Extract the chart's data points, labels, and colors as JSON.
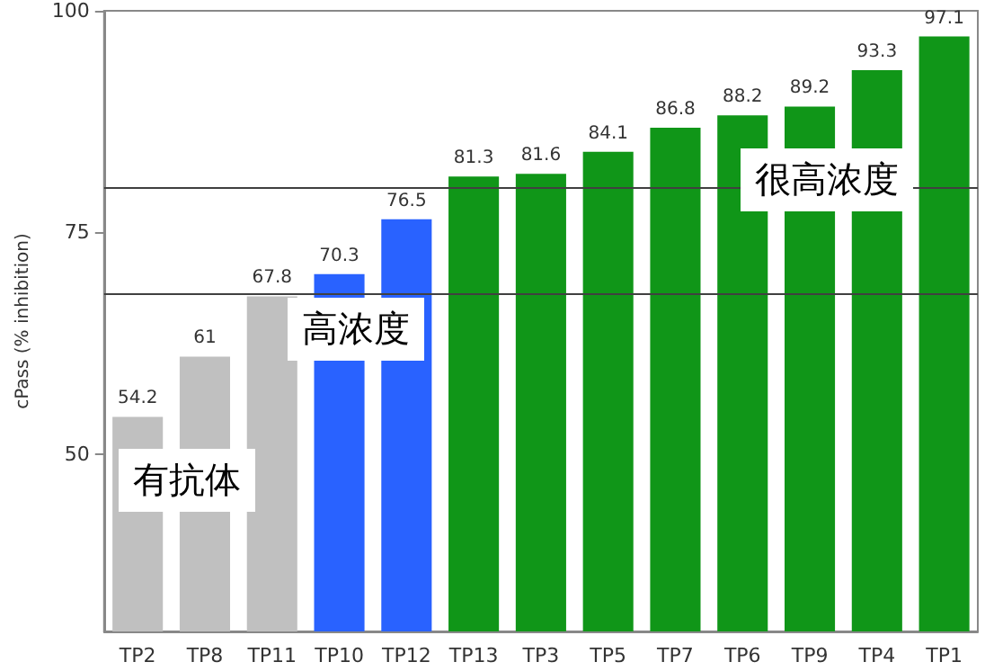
{
  "chart_data": {
    "type": "bar",
    "ylabel": "cPass (% inhibition)",
    "categories": [
      "TP2",
      "TP8",
      "TP11",
      "TP10",
      "TP12",
      "TP13",
      "TP3",
      "TP5",
      "TP7",
      "TP6",
      "TP9",
      "TP4",
      "TP1"
    ],
    "values": [
      54.2,
      61,
      67.8,
      70.3,
      76.5,
      81.3,
      81.6,
      84.1,
      86.8,
      88.2,
      89.2,
      93.3,
      97.1
    ],
    "colors": [
      "#c0c0c0",
      "#c0c0c0",
      "#c0c0c0",
      "#2962ff",
      "#2962ff",
      "#109618",
      "#109618",
      "#109618",
      "#109618",
      "#109618",
      "#109618",
      "#109618",
      "#109618"
    ],
    "ylim": [
      30,
      100
    ],
    "yticks": [
      50,
      75,
      100
    ],
    "grid": false,
    "data_labels": true,
    "ref_lines": [
      {
        "axis": "y",
        "value": 80,
        "color": "#404040"
      },
      {
        "axis": "y",
        "value": 68,
        "color": "#404040"
      }
    ],
    "annotations": [
      "有抗体",
      "高浓度",
      "很高浓度"
    ]
  }
}
